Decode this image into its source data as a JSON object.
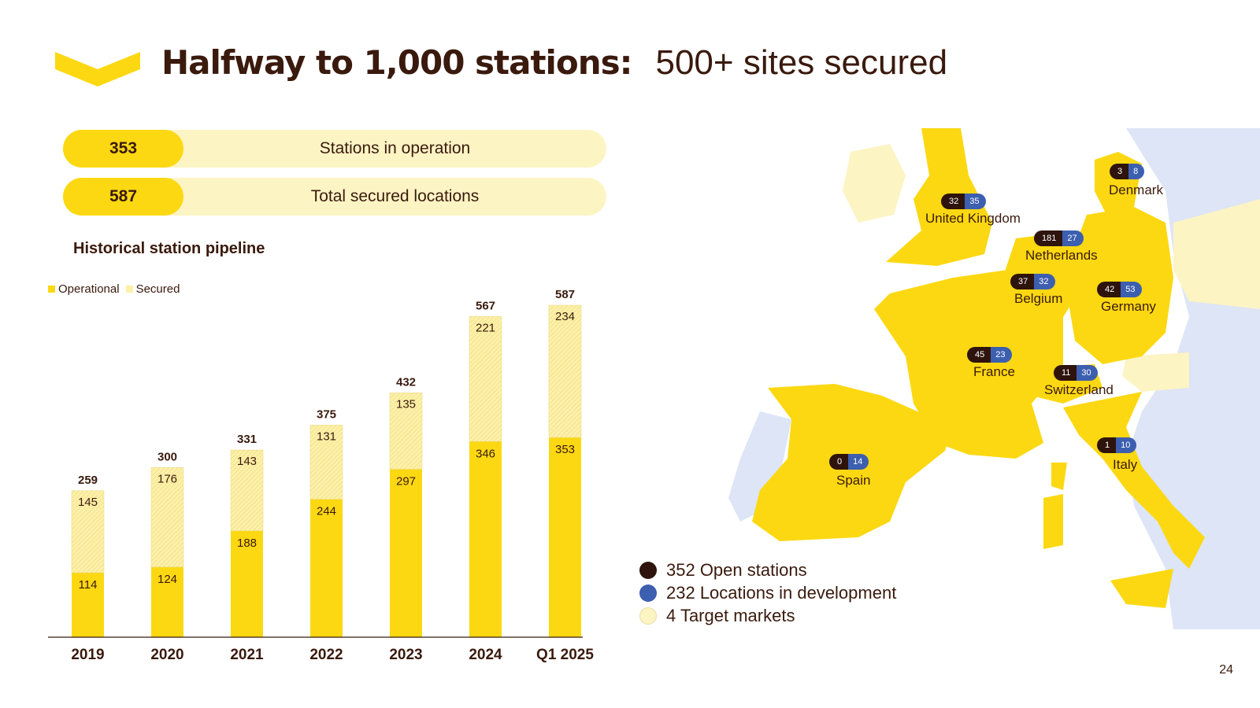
{
  "header": {
    "title_strong": "Halfway to 1,000 stations:",
    "title_light": "500+ sites secured"
  },
  "kpis": [
    {
      "value": "353",
      "label": "Stations in operation"
    },
    {
      "value": "587",
      "label": "Total secured locations"
    }
  ],
  "colors": {
    "operational": "#fcd812",
    "secured": "#fdf0a8",
    "dark_brown": "#2e140d",
    "blue": "#3d5fb0",
    "target": "#fdf4c4",
    "sea_land_other": "#dde5f6"
  },
  "chart_data": {
    "type": "bar",
    "title": "Historical station pipeline",
    "stacked": true,
    "categories": [
      "2019",
      "2020",
      "2021",
      "2022",
      "2023",
      "2024",
      "Q1 2025"
    ],
    "series": [
      {
        "name": "Operational",
        "values": [
          114,
          124,
          188,
          244,
          297,
          346,
          353
        ]
      },
      {
        "name": "Secured",
        "values": [
          145,
          176,
          143,
          131,
          135,
          221,
          234
        ]
      }
    ],
    "totals": [
      259,
      300,
      331,
      375,
      432,
      567,
      587
    ],
    "ylim": [
      0,
      587
    ],
    "legend_position": "top-left",
    "grid": false
  },
  "map": {
    "countries": [
      {
        "name": "United Kingdom",
        "open": "32",
        "dev": "35"
      },
      {
        "name": "Denmark",
        "open": "3",
        "dev": "8"
      },
      {
        "name": "Netherlands",
        "open": "181",
        "dev": "27"
      },
      {
        "name": "Belgium",
        "open": "37",
        "dev": "32"
      },
      {
        "name": "Germany",
        "open": "42",
        "dev": "53"
      },
      {
        "name": "France",
        "open": "45",
        "dev": "23"
      },
      {
        "name": "Switzerland",
        "open": "11",
        "dev": "30"
      },
      {
        "name": "Spain",
        "open": "0",
        "dev": "14"
      },
      {
        "name": "Italy",
        "open": "1",
        "dev": "10"
      }
    ],
    "legend": [
      {
        "label": "352 Open stations",
        "icon": "dark-dot"
      },
      {
        "label": "232 Locations in development",
        "icon": "blue-dot"
      },
      {
        "label": "4 Target markets",
        "icon": "cream-dot"
      }
    ]
  },
  "page_number": "24"
}
